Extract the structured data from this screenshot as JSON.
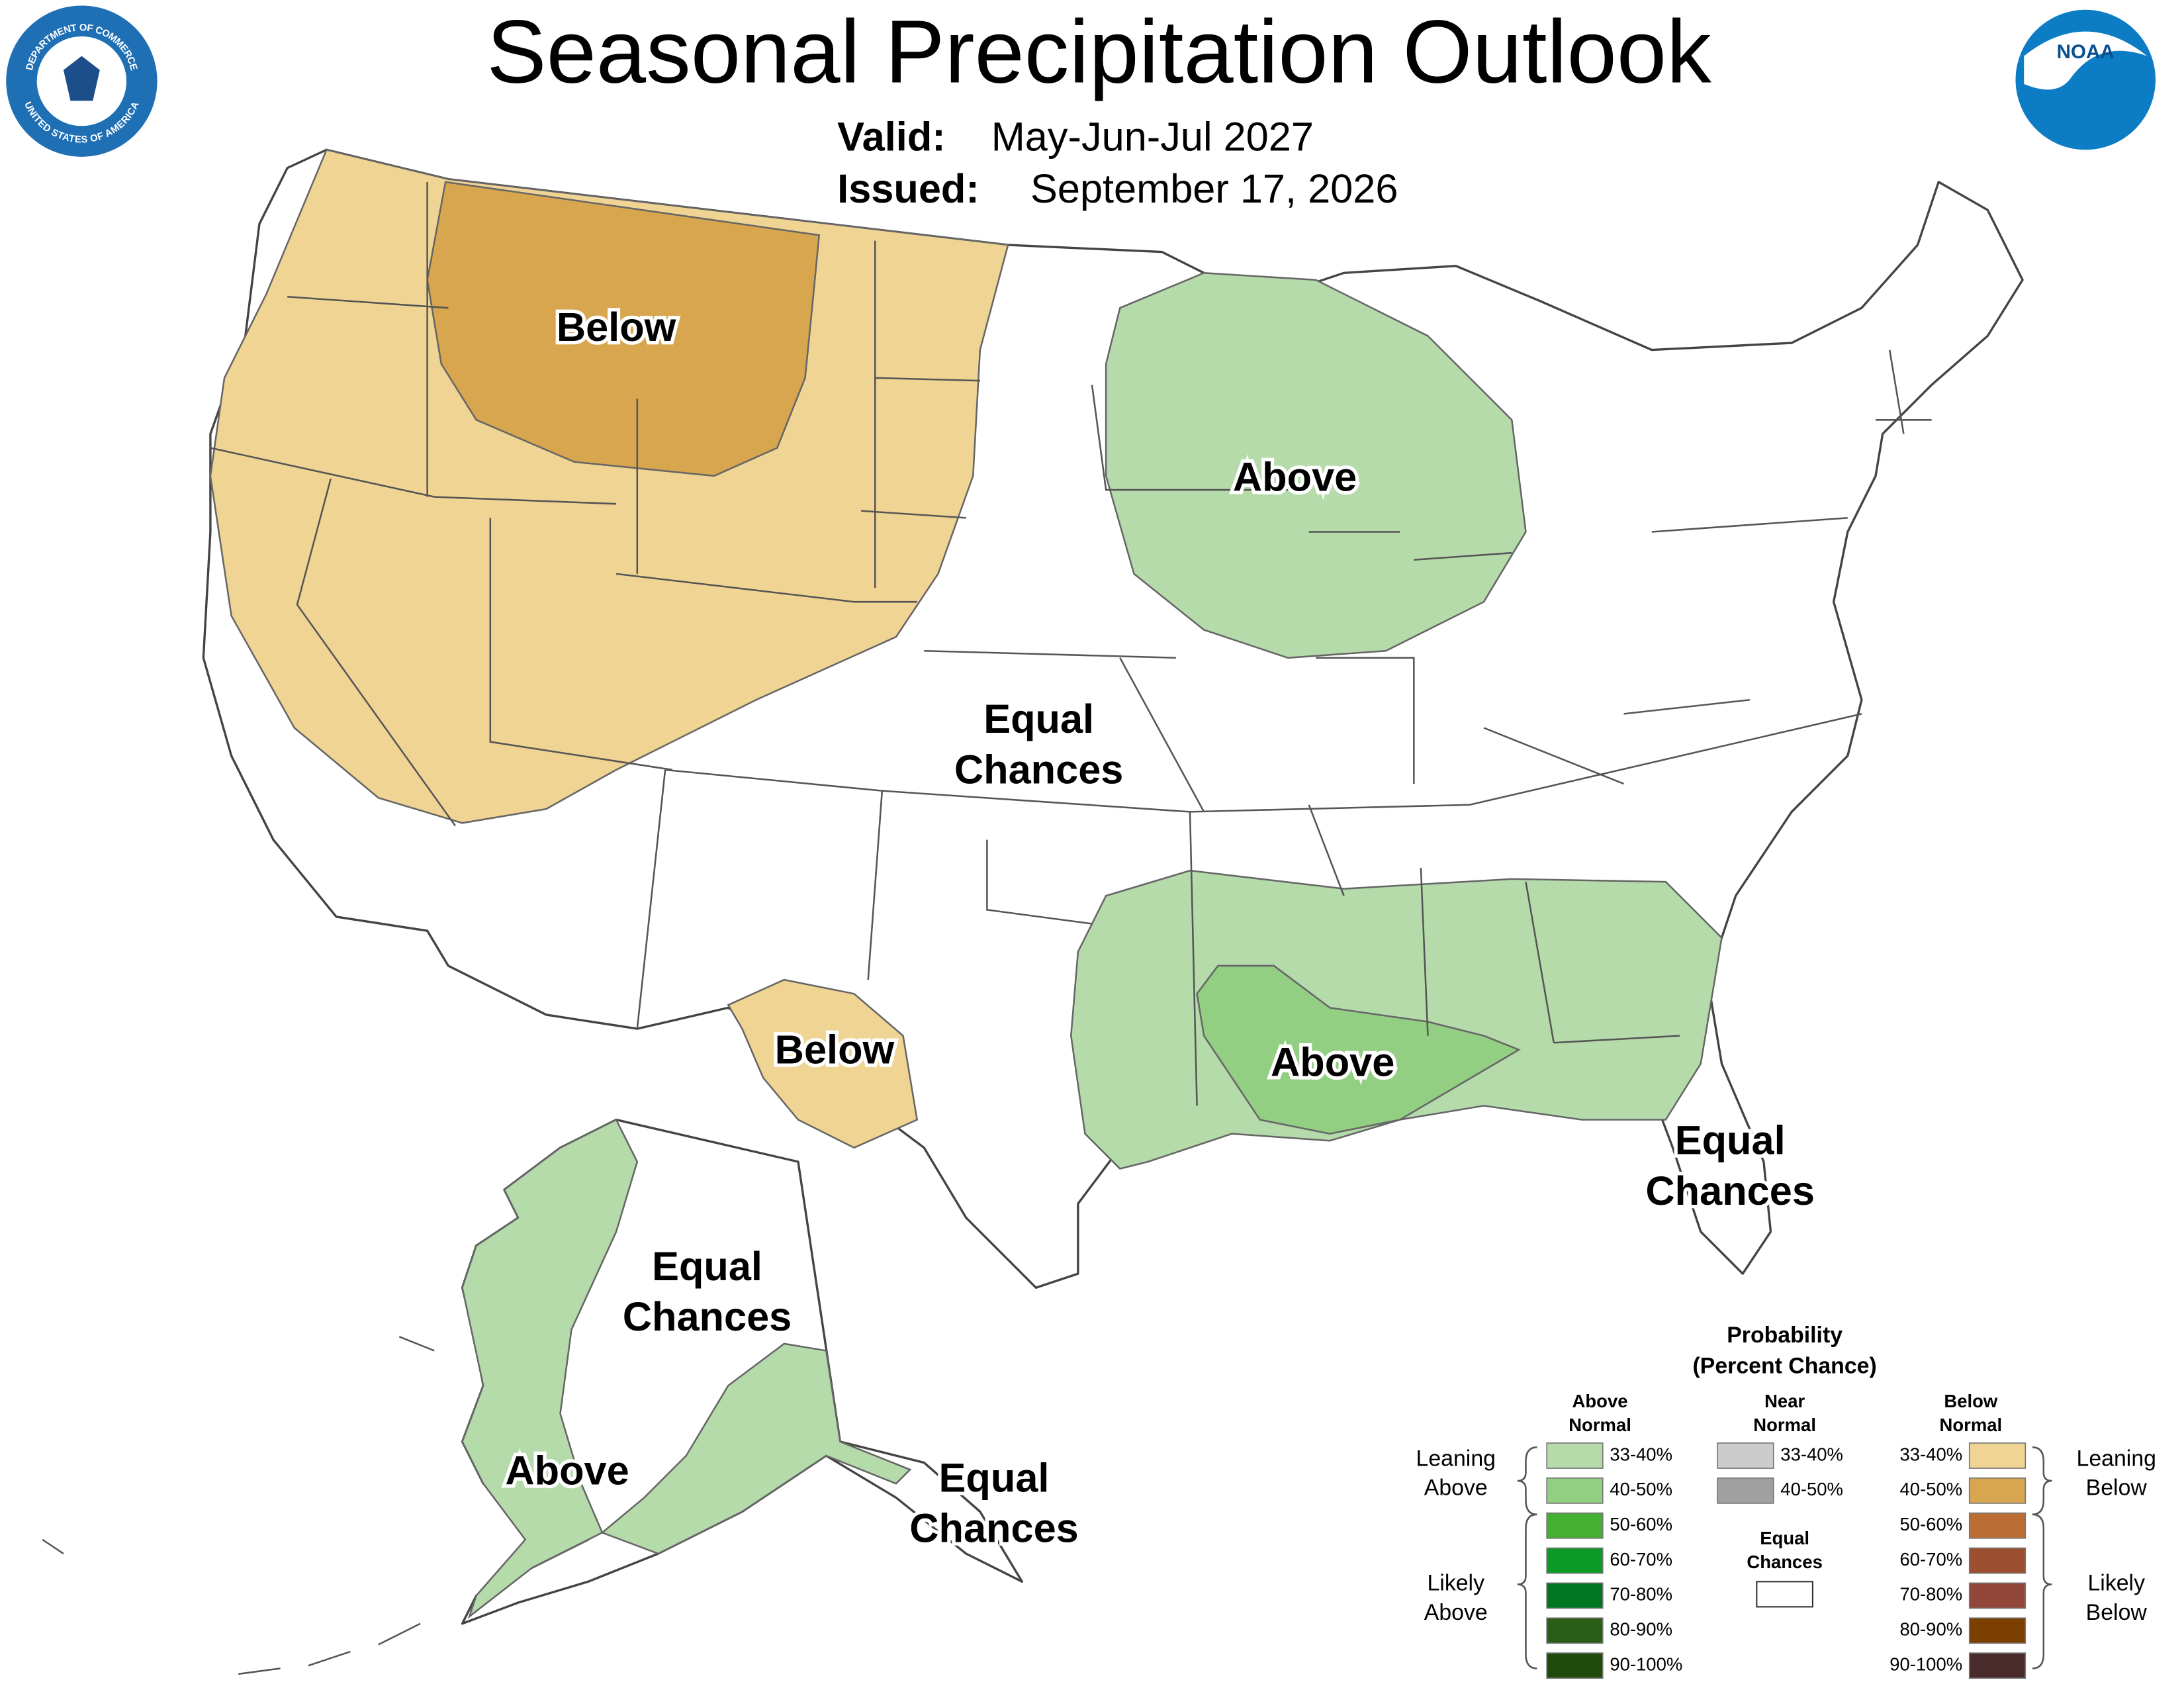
{
  "header": {
    "title": "Seasonal Precipitation Outlook",
    "valid_label": "Valid:",
    "valid": "May-Jun-Jul 2027",
    "issued_label": "Issued:",
    "issued": "September 17, 2026"
  },
  "logos": {
    "seal_top": "DEPARTMENT OF COMMERCE",
    "seal_bottom": "UNITED STATES OF AMERICA",
    "noaa": "NOAA"
  },
  "map_labels": [
    {
      "lines": [
        "Below"
      ]
    },
    {
      "lines": [
        "Above"
      ]
    },
    {
      "lines": [
        "Equal",
        "Chances"
      ]
    },
    {
      "lines": [
        "Below"
      ]
    },
    {
      "lines": [
        "Above"
      ]
    },
    {
      "lines": [
        "Equal",
        "Chances"
      ]
    },
    {
      "lines": [
        "Equal",
        "Chances"
      ]
    },
    {
      "lines": [
        "Above"
      ]
    },
    {
      "lines": [
        "Equal",
        "Chances"
      ]
    }
  ],
  "legend": {
    "title": "Probability",
    "subtitle": "(Percent Chance)",
    "columns": [
      {
        "heading": [
          "Above",
          "Normal"
        ],
        "items": [
          {
            "label": "33-40%",
            "color": "#b5dbab"
          },
          {
            "label": "40-50%",
            "color": "#93cf82"
          },
          {
            "label": "50-60%",
            "color": "#43b032"
          },
          {
            "label": "60-70%",
            "color": "#0c9a27"
          },
          {
            "label": "70-80%",
            "color": "#007621"
          },
          {
            "label": "80-90%",
            "color": "#2a5e16"
          },
          {
            "label": "90-100%",
            "color": "#1e4a0a"
          }
        ]
      },
      {
        "heading": [
          "Near",
          "Normal"
        ],
        "items": [
          {
            "label": "33-40%",
            "color": "#cccccc"
          },
          {
            "label": "40-50%",
            "color": "#a0a0a0"
          }
        ]
      },
      {
        "heading": [
          "Below",
          "Normal"
        ],
        "items": [
          {
            "label": "33-40%",
            "color": "#f0d493"
          },
          {
            "label": "40-50%",
            "color": "#d8a64f"
          },
          {
            "label": "50-60%",
            "color": "#bb6d33"
          },
          {
            "label": "60-70%",
            "color": "#9b4f2f"
          },
          {
            "label": "70-80%",
            "color": "#93473b"
          },
          {
            "label": "80-90%",
            "color": "#7b3f00"
          },
          {
            "label": "90-100%",
            "color": "#4a2b2b"
          }
        ]
      }
    ],
    "equal": {
      "heading": [
        "Equal",
        "Chances"
      ]
    },
    "sides": {
      "leaning_above": [
        "Leaning",
        "Above"
      ],
      "likely_above": [
        "Likely",
        "Above"
      ],
      "leaning_below": [
        "Leaning",
        "Below"
      ],
      "likely_below": [
        "Likely",
        "Below"
      ]
    }
  }
}
